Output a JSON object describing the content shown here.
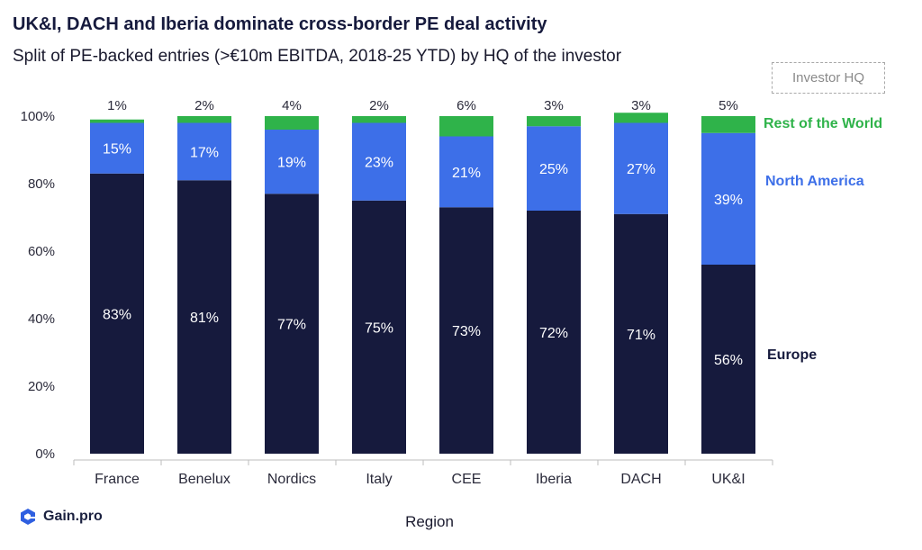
{
  "title": "UK&I, DACH and Iberia dominate cross-border PE deal activity",
  "subtitle": "Split of PE-backed entries (>€10m EBITDA, 2018-25 YTD) by HQ of the investor",
  "legend_title": "Investor HQ",
  "brand": "Gain.pro",
  "colors": {
    "Europe": "#161a3d",
    "North America": "#3d6fe8",
    "Rest of the World": "#2fb34a"
  },
  "chart_data": {
    "type": "bar",
    "stacked": true,
    "percent": true,
    "xlabel": "Region",
    "ylabel": "",
    "ylim": [
      0,
      100
    ],
    "yticks": [
      "0%",
      "20%",
      "40%",
      "60%",
      "80%",
      "100%"
    ],
    "categories": [
      "France",
      "Benelux",
      "Nordics",
      "Italy",
      "CEE",
      "Iberia",
      "DACH",
      "UK&I"
    ],
    "series": [
      {
        "name": "Europe",
        "values": [
          83,
          81,
          77,
          75,
          73,
          72,
          71,
          56
        ]
      },
      {
        "name": "North America",
        "values": [
          15,
          17,
          19,
          23,
          21,
          25,
          27,
          39
        ]
      },
      {
        "name": "Rest of the World",
        "values": [
          1,
          2,
          4,
          2,
          6,
          3,
          3,
          5
        ]
      }
    ],
    "legend_position": "right"
  }
}
